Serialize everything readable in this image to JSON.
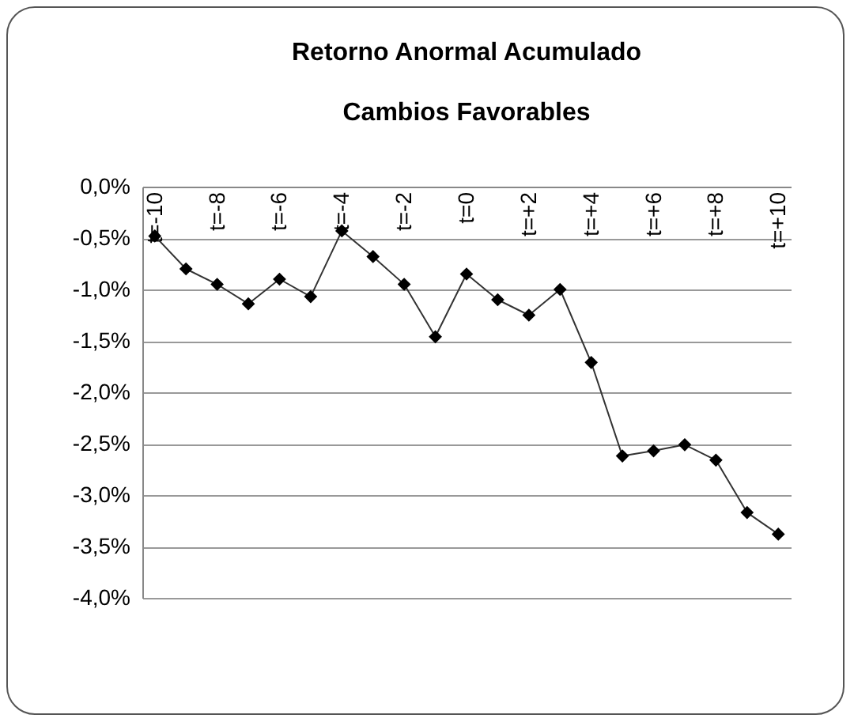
{
  "chart_data": {
    "type": "line",
    "title": "Retorno Anormal Acumulado",
    "subtitle": "Cambios Favorables",
    "categories": [
      "t=-10",
      null,
      "t=-8",
      null,
      "t=-6",
      null,
      "t=-4",
      null,
      "t=-2",
      null,
      "t=0",
      null,
      "t=+2",
      null,
      "t=+4",
      null,
      "t=+6",
      null,
      "t=+8",
      null,
      "t=+10"
    ],
    "series": [
      {
        "color": "#000000",
        "values": [
          -0.48,
          -0.8,
          -0.95,
          -1.14,
          -0.9,
          -1.07,
          -0.43,
          -0.68,
          -0.95,
          -1.46,
          -0.85,
          -1.1,
          -1.25,
          -1.0,
          -1.71,
          -2.62,
          -2.57,
          -2.51,
          -2.66,
          -3.17,
          -3.38
        ]
      }
    ],
    "ylim": [
      -4,
      0
    ],
    "yticks": [
      {
        "value": 0,
        "label": "0,0%"
      },
      {
        "value": -0.5,
        "label": "-0,5%"
      },
      {
        "value": -1,
        "label": "-1,0%"
      },
      {
        "value": -1.5,
        "label": "-1,5%"
      },
      {
        "value": -2,
        "label": "-2,0%"
      },
      {
        "value": -2.5,
        "label": "-2,5%"
      },
      {
        "value": -3,
        "label": "-3,0%"
      },
      {
        "value": -3.5,
        "label": "-3,5%"
      },
      {
        "value": -4,
        "label": "-4,0%"
      }
    ],
    "grid": "y",
    "legend": false,
    "marker": "diamond",
    "line_style": "solid"
  }
}
